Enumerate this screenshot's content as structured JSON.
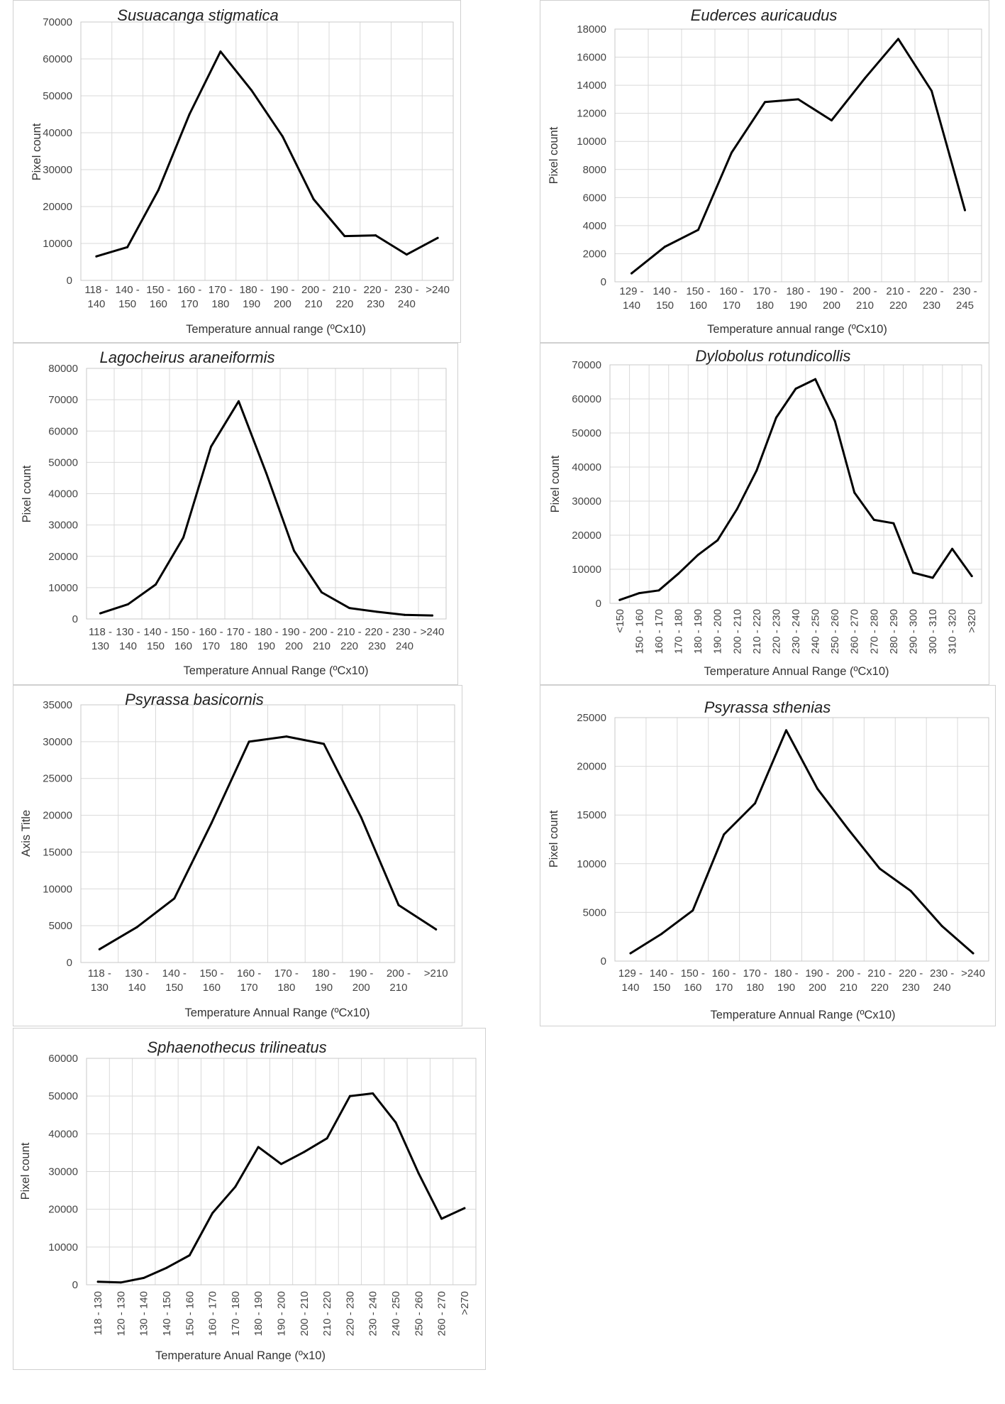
{
  "chart_data": [
    {
      "type": "line",
      "title": "Susuacanga stigmatica",
      "xlabel": "Temperature annual range (ºCx10)",
      "ylabel": "Pixel count",
      "ylim": [
        0,
        70000
      ],
      "ytick_step": 10000,
      "categories": [
        [
          "118 -",
          "140"
        ],
        [
          "140 -",
          "150"
        ],
        [
          "150 -",
          "160"
        ],
        [
          "160 -",
          "170"
        ],
        [
          "170 -",
          "180"
        ],
        [
          "180 -",
          "190"
        ],
        [
          "190 -",
          "200"
        ],
        [
          "200 -",
          "210"
        ],
        [
          "210 -",
          "220"
        ],
        [
          "220 -",
          "230"
        ],
        [
          "230 -",
          "240"
        ],
        [
          ">240"
        ]
      ],
      "values": [
        6500,
        9000,
        24500,
        45000,
        62000,
        51500,
        39000,
        22000,
        12000,
        12200,
        7000,
        11500
      ],
      "rotated_ticks": false
    },
    {
      "type": "line",
      "title": "Euderces auricaudus",
      "xlabel": "Temperature annual range (ºCx10)",
      "ylabel": "Pixel count",
      "ylim": [
        0,
        18000
      ],
      "ytick_step": 2000,
      "categories": [
        [
          "129 -",
          "140"
        ],
        [
          "140 -",
          "150"
        ],
        [
          "150 -",
          "160"
        ],
        [
          "160 -",
          "170"
        ],
        [
          "170 -",
          "180"
        ],
        [
          "180 -",
          "190"
        ],
        [
          "190 -",
          "200"
        ],
        [
          "200 -",
          "210"
        ],
        [
          "210 -",
          "220"
        ],
        [
          "220 -",
          "230"
        ],
        [
          "230 -",
          "245"
        ]
      ],
      "values": [
        600,
        2500,
        3700,
        9200,
        12800,
        13000,
        11500,
        14500,
        17300,
        13600,
        5100
      ],
      "rotated_ticks": false
    },
    {
      "type": "line",
      "title": "Lagocheirus araneiformis",
      "xlabel": "Temperature Annual Range (ºCx10)",
      "ylabel": "Pixel count",
      "ylim": [
        0,
        80000
      ],
      "ytick_step": 10000,
      "categories": [
        [
          "118 -",
          "130"
        ],
        [
          "130 -",
          "140"
        ],
        [
          "140 -",
          "150"
        ],
        [
          "150 -",
          "160"
        ],
        [
          "160 -",
          "170"
        ],
        [
          "170 -",
          "180"
        ],
        [
          "180 -",
          "190"
        ],
        [
          "190 -",
          "200"
        ],
        [
          "200 -",
          "210"
        ],
        [
          "210 -",
          "220"
        ],
        [
          "220 -",
          "230"
        ],
        [
          "230 -",
          "240"
        ],
        [
          ">240"
        ]
      ],
      "values": [
        1800,
        4700,
        11000,
        26000,
        55000,
        69500,
        46500,
        21800,
        8500,
        3500,
        2300,
        1300,
        1100
      ],
      "rotated_ticks": false
    },
    {
      "type": "line",
      "title": "Dylobolus rotundicollis",
      "xlabel": "Temperature Annual Range (ºCx10)",
      "ylabel": "Pixel count",
      "ylim": [
        0,
        70000
      ],
      "ytick_step": 10000,
      "categories": [
        [
          "<150"
        ],
        [
          "150 - 160"
        ],
        [
          "160 - 170"
        ],
        [
          "170 - 180"
        ],
        [
          "180 - 190"
        ],
        [
          "190 - 200"
        ],
        [
          "200 - 210"
        ],
        [
          "210 - 220"
        ],
        [
          "220 - 230"
        ],
        [
          "230 - 240"
        ],
        [
          "240 - 250"
        ],
        [
          "250 - 260"
        ],
        [
          "260 - 270"
        ],
        [
          "270 - 280"
        ],
        [
          "280 - 290"
        ],
        [
          "290 - 300"
        ],
        [
          "300 - 310"
        ],
        [
          "310 - 320"
        ],
        [
          ">320"
        ]
      ],
      "values": [
        1000,
        3000,
        3800,
        8700,
        14200,
        18500,
        27700,
        39000,
        54500,
        63000,
        65800,
        53500,
        32500,
        24500,
        23500,
        9000,
        7500,
        16000,
        8000
      ],
      "rotated_ticks": true
    },
    {
      "type": "line",
      "title": "Psyrassa basicornis",
      "xlabel": "Temperature Annual Range (ºCx10)",
      "ylabel": "Axis Title",
      "ylim": [
        0,
        35000
      ],
      "ytick_step": 5000,
      "categories": [
        [
          "118 -",
          "130"
        ],
        [
          "130 -",
          "140"
        ],
        [
          "140 -",
          "150"
        ],
        [
          "150 -",
          "160"
        ],
        [
          "160 -",
          "170"
        ],
        [
          "170 -",
          "180"
        ],
        [
          "180 -",
          "190"
        ],
        [
          "190 -",
          "200"
        ],
        [
          "200 -",
          "210"
        ],
        [
          ">210"
        ]
      ],
      "values": [
        1800,
        4800,
        8700,
        19000,
        30000,
        30700,
        29700,
        19700,
        7800,
        4500
      ],
      "rotated_ticks": false
    },
    {
      "type": "line",
      "title": "Psyrassa sthenias",
      "xlabel": "Temperature Annual Range (ºCx10)",
      "ylabel": "Pixel count",
      "ylim": [
        0,
        25000
      ],
      "ytick_step": 5000,
      "categories": [
        [
          "129 -",
          "140"
        ],
        [
          "140 -",
          "150"
        ],
        [
          "150 -",
          "160"
        ],
        [
          "160 -",
          "170"
        ],
        [
          "170 -",
          "180"
        ],
        [
          "180 -",
          "190"
        ],
        [
          "190 -",
          "200"
        ],
        [
          "200 -",
          "210"
        ],
        [
          "210 -",
          "220"
        ],
        [
          "220 -",
          "230"
        ],
        [
          "230 -",
          "240"
        ],
        [
          ">240"
        ]
      ],
      "values": [
        800,
        2800,
        5200,
        13000,
        16200,
        23700,
        17700,
        13500,
        9500,
        7200,
        3600,
        800
      ],
      "rotated_ticks": false
    },
    {
      "type": "line",
      "title": "Sphaenothecus trilineatus",
      "xlabel": "Temperature Anual Range (ºx10)",
      "ylabel": "Pixel count",
      "ylim": [
        0,
        60000
      ],
      "ytick_step": 10000,
      "categories": [
        [
          "118 - 130"
        ],
        [
          "120 - 130"
        ],
        [
          "130 - 140"
        ],
        [
          "140 - 150"
        ],
        [
          "150 - 160"
        ],
        [
          "160 - 170"
        ],
        [
          "170 - 180"
        ],
        [
          "180 - 190"
        ],
        [
          "190 - 200"
        ],
        [
          "200 - 210"
        ],
        [
          "210 - 220"
        ],
        [
          "220 - 230"
        ],
        [
          "230 - 240"
        ],
        [
          "240 - 250"
        ],
        [
          "250 - 260"
        ],
        [
          "260 - 270"
        ],
        [
          ">270"
        ]
      ],
      "values": [
        800,
        600,
        1800,
        4500,
        7800,
        19000,
        26000,
        36500,
        32000,
        35200,
        38800,
        50000,
        50700,
        43000,
        29500,
        17500,
        20300
      ],
      "rotated_ticks": true
    }
  ]
}
